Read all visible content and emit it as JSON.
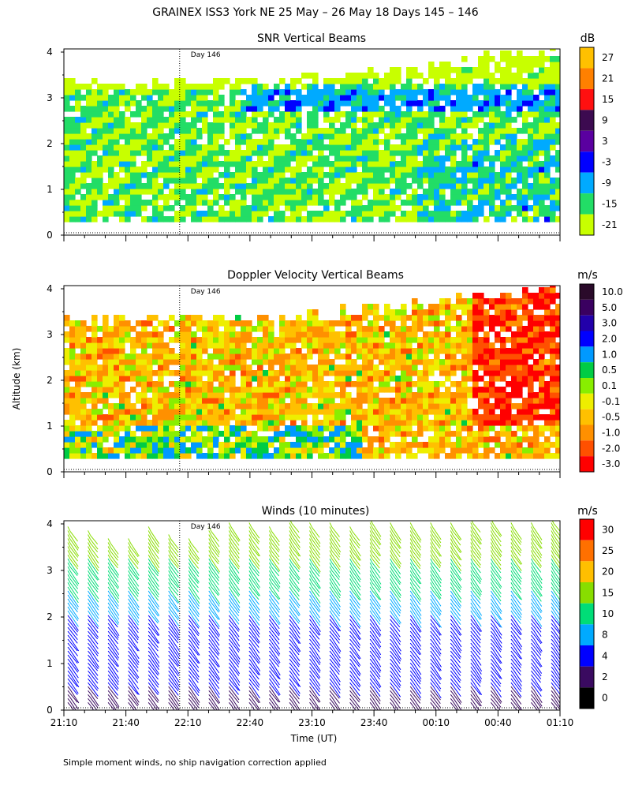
{
  "figure": {
    "main_title": "GRAINEX ISS3 York NE  25 May – 26 May 18 Days 145 – 146",
    "ylabel": "Altitude (km)",
    "xlabel": "Time (UT)",
    "footnote": "Simple moment winds, no ship navigation correction applied",
    "x_ticks": [
      "21:10",
      "21:40",
      "22:10",
      "22:40",
      "23:10",
      "23:40",
      "00:10",
      "00:40",
      "01:10"
    ],
    "y_ticks": [
      "0",
      "1",
      "2",
      "3",
      "4"
    ],
    "day_marker": "Day 146"
  },
  "chart_data": [
    {
      "type": "heatmap",
      "title": "SNR Vertical Beams",
      "unit": "dB",
      "xlabel": "Time (UT)",
      "ylabel": "Altitude (km)",
      "ylim": [
        0,
        4
      ],
      "xlim": [
        "21:10",
        "01:10"
      ],
      "colorbar": {
        "labels": [
          "27",
          "21",
          "15",
          "9",
          "3",
          "-3",
          "-9",
          "-15",
          "-21"
        ],
        "colors": [
          "#ffc000",
          "#ff8000",
          "#ff1010",
          "#3c0a50",
          "#5a00a0",
          "#0000ff",
          "#00aaff",
          "#22dd66",
          "#c8ff00"
        ]
      },
      "annotations": [
        "Day 146"
      ]
    },
    {
      "type": "heatmap",
      "title": "Doppler Velocity Vertical Beams",
      "unit": "m/s",
      "xlabel": "Time (UT)",
      "ylabel": "Altitude (km)",
      "ylim": [
        0,
        4
      ],
      "xlim": [
        "21:10",
        "01:10"
      ],
      "colorbar": {
        "labels": [
          "10.0",
          "5.0",
          "3.0",
          "2.0",
          "1.0",
          "0.5",
          "0.1",
          "-0.1",
          "-0.5",
          "-1.0",
          "-2.0",
          "-3.0"
        ],
        "colors": [
          "#2a0a2a",
          "#3a0060",
          "#2200aa",
          "#0000ff",
          "#0099ff",
          "#00cc44",
          "#88ee00",
          "#eeee00",
          "#ffc000",
          "#ff9000",
          "#ff5000",
          "#ff0000"
        ]
      },
      "annotations": [
        "Day 146"
      ]
    },
    {
      "type": "wind_barbs",
      "title": "Winds (10 minutes)",
      "unit": "m/s",
      "xlabel": "Time (UT)",
      "ylabel": "Altitude (km)",
      "ylim": [
        0,
        4
      ],
      "xlim": [
        "21:10",
        "01:10"
      ],
      "colorbar": {
        "labels": [
          "30",
          "25",
          "20",
          "15",
          "10",
          "8",
          "4",
          "2",
          "0"
        ],
        "colors": [
          "#ff0000",
          "#ff7000",
          "#ffbf00",
          "#88dd00",
          "#00dd77",
          "#00aaff",
          "#0000ff",
          "#3a0a60",
          "#000000"
        ]
      },
      "annotations": [
        "Day 146"
      ]
    }
  ]
}
